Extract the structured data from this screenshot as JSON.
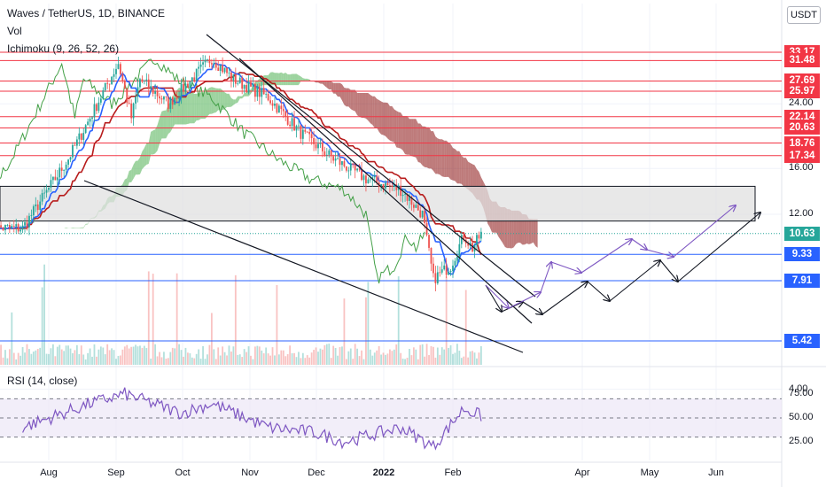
{
  "header": {
    "symbol_line": "Waves / TetherUS, 1D, BINANCE",
    "vol_label": "Vol",
    "ichimoku_label": "Ichimoku (9, 26, 52, 26)",
    "currency": "USDT",
    "rsi_label": "RSI (14, close)"
  },
  "colors": {
    "horizontal_red": "#f23645",
    "horizontal_blue": "#2962ff",
    "trendline": "#131722",
    "projection_black": "#131722",
    "projection_purple": "#7e57c2",
    "cloud_bull": "#4caf50",
    "cloud_bear": "#880e0e",
    "base_line": "#b71c1c",
    "conversion_line": "#2962ff",
    "lagging_span": "#43a047",
    "rsi_line": "#7e57c2",
    "rsi_band": "#ede7f6",
    "candle_up": "#26a69a",
    "candle_down": "#ef5350",
    "zone_fill": "#e0e0e0",
    "tag_current": "#26a69a"
  },
  "price_levels": [
    {
      "value": "33.17",
      "type": "red"
    },
    {
      "value": "31.48",
      "type": "red"
    },
    {
      "value": "27.69",
      "type": "red"
    },
    {
      "value": "25.97",
      "type": "red"
    },
    {
      "value": "22.14",
      "type": "red"
    },
    {
      "value": "20.63",
      "type": "red"
    },
    {
      "value": "18.76",
      "type": "red"
    },
    {
      "value": "17.34",
      "type": "red"
    },
    {
      "value": "9.33",
      "type": "blue"
    },
    {
      "value": "7.91",
      "type": "blue"
    },
    {
      "value": "5.42",
      "type": "blue"
    }
  ],
  "current_price": {
    "value": "10.63"
  },
  "price_axis_ticks": [
    "24.00",
    "16.00",
    "12.00",
    "4.00"
  ],
  "rsi_axis_ticks": [
    "75.00",
    "50.00",
    "25.00"
  ],
  "x_axis_months": [
    "Aug",
    "Sep",
    "Oct",
    "Nov",
    "Dec",
    "2022",
    "Feb",
    "Apr",
    "May",
    "Jun"
  ],
  "chart_data": {
    "type": "candlestick",
    "title": "Waves / TetherUS, 1D, BINANCE",
    "y_scale": "log",
    "y_axis_labels": [
      "24.00",
      "16.00",
      "12.00",
      "4.00"
    ],
    "x_axis_labels": [
      "Aug",
      "Sep",
      "Oct",
      "Nov",
      "Dec",
      "2022",
      "Feb",
      "Apr",
      "May",
      "Jun"
    ],
    "rsi_levels": [
      70,
      50,
      30
    ],
    "support_zone": [
      11.5,
      14.3
    ],
    "key_points": [
      {
        "date": "2021-07-20",
        "price": 11.0
      },
      {
        "date": "2021-08-10",
        "price": 17.0
      },
      {
        "date": "2021-08-20",
        "price": 22.0
      },
      {
        "date": "2021-09-02",
        "price": 31.0
      },
      {
        "date": "2021-09-08",
        "price": 22.0
      },
      {
        "date": "2021-09-12",
        "price": 28.0
      },
      {
        "date": "2021-09-25",
        "price": 24.0
      },
      {
        "date": "2021-10-15",
        "price": 32.0
      },
      {
        "date": "2021-10-25",
        "price": 28.0
      },
      {
        "date": "2021-11-10",
        "price": 25.0
      },
      {
        "date": "2021-11-25",
        "price": 20.0
      },
      {
        "date": "2021-12-10",
        "price": 17.0
      },
      {
        "date": "2021-12-25",
        "price": 15.0
      },
      {
        "date": "2022-01-10",
        "price": 14.0
      },
      {
        "date": "2022-01-20",
        "price": 12.0
      },
      {
        "date": "2022-01-25",
        "price": 8.0
      },
      {
        "date": "2022-02-02",
        "price": 8.7
      },
      {
        "date": "2022-02-08",
        "price": 10.5
      },
      {
        "date": "2022-02-12",
        "price": 9.7
      },
      {
        "date": "2022-02-16",
        "price": 10.6
      }
    ],
    "rsi_key_points": [
      {
        "date": "2021-07-20",
        "value": 40
      },
      {
        "date": "2021-08-20",
        "value": 65
      },
      {
        "date": "2021-09-05",
        "value": 75
      },
      {
        "date": "2021-10-01",
        "value": 55
      },
      {
        "date": "2021-10-15",
        "value": 65
      },
      {
        "date": "2021-11-10",
        "value": 40
      },
      {
        "date": "2021-12-01",
        "value": 35
      },
      {
        "date": "2021-12-15",
        "value": 25
      },
      {
        "date": "2022-01-10",
        "value": 40
      },
      {
        "date": "2022-01-25",
        "value": 20
      },
      {
        "date": "2022-02-08",
        "value": 60
      },
      {
        "date": "2022-02-16",
        "value": 52
      }
    ]
  }
}
